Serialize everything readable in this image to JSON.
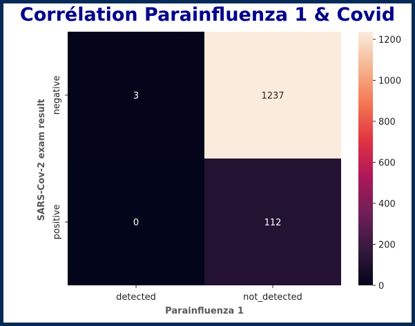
{
  "title": "Corrélation Parainfluenza 1 & Covid",
  "chart_data": {
    "type": "heatmap",
    "xlabel": "Parainfluenza 1",
    "ylabel": "SARS-Cov-2 exam result",
    "x_categories": [
      "detected",
      "not_detected"
    ],
    "y_categories": [
      "negative",
      "positive"
    ],
    "values": [
      [
        3,
        1237
      ],
      [
        0,
        112
      ]
    ],
    "colorbar": {
      "range": [
        0,
        1237
      ],
      "ticks": [
        0,
        200,
        400,
        600,
        800,
        1000,
        1200
      ],
      "colormap": "rocket",
      "stops": [
        "#03051a",
        "#35193e",
        "#701f57",
        "#ad1759",
        "#e13342",
        "#f37651",
        "#f6b48f",
        "#faebdd"
      ]
    },
    "grid": false
  },
  "colors": {
    "border": "#062a57",
    "title": "#00008b"
  }
}
